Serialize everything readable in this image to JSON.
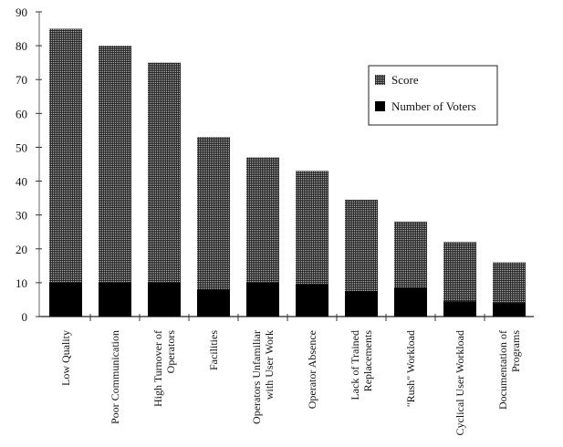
{
  "chart_data": {
    "type": "bar",
    "stacking": "overlapped",
    "title": "",
    "xlabel": "",
    "ylabel": "",
    "ylim": [
      0,
      90
    ],
    "yticks": [
      0,
      10,
      20,
      30,
      40,
      50,
      60,
      70,
      80,
      90
    ],
    "categories": [
      [
        "Low Quality"
      ],
      [
        "Poor Communication"
      ],
      [
        "High Turnover of",
        "Operators"
      ],
      [
        "Facilities"
      ],
      [
        "Operators Unfamiliar",
        "with User Work"
      ],
      [
        "Operator Absence"
      ],
      [
        "Lack of Trained",
        "Replacements"
      ],
      [
        "\"Rush\" Workload"
      ],
      [
        "Cyclical User Workload"
      ],
      [
        "Documentation of",
        "Programs"
      ]
    ],
    "series": [
      {
        "name": "Score",
        "color": "#5a5a5a",
        "pattern": "dithered-gray",
        "values": [
          85,
          80,
          75,
          53,
          47,
          43,
          34.5,
          28,
          22,
          16
        ]
      },
      {
        "name": "Number of Voters",
        "color": "#000000",
        "values": [
          10,
          10,
          10,
          8,
          10,
          9.5,
          7.5,
          8.5,
          4.5,
          4
        ]
      }
    ],
    "legend_position": "top-right",
    "grid": false
  }
}
